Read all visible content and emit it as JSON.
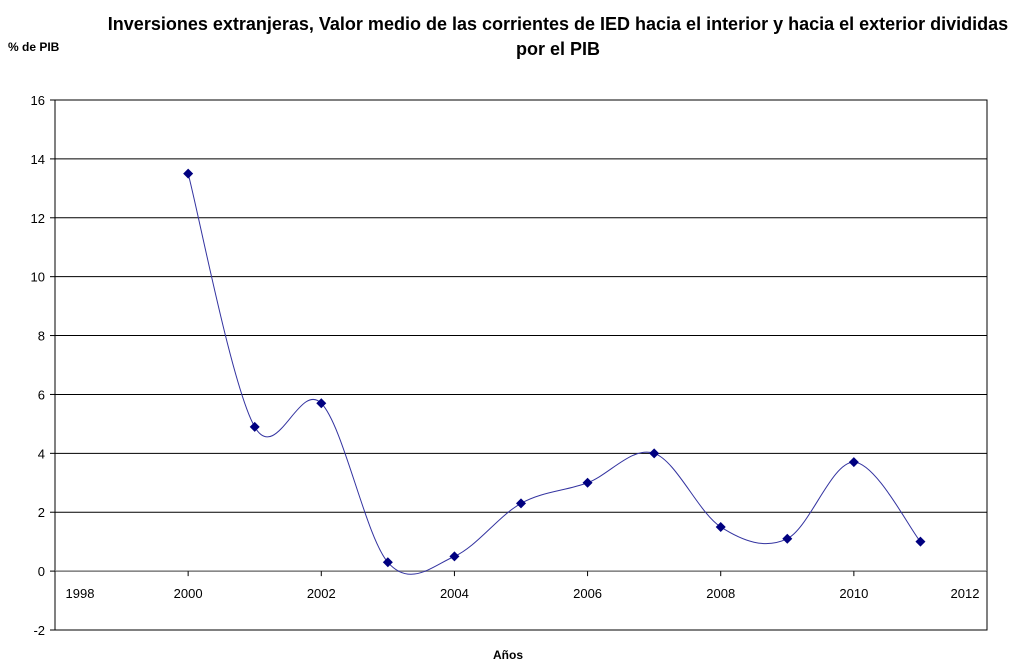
{
  "chart_data": {
    "type": "line",
    "title": "Inversiones extranjeras, Valor medio de las corrientes de IED hacia el interior y hacia el exterior divididas por el PIB",
    "ylabel": "% de PIB",
    "xlabel": "Años",
    "xlim": [
      1998,
      2012
    ],
    "ylim": [
      -2,
      16
    ],
    "xticks": [
      1998,
      2000,
      2002,
      2004,
      2006,
      2008,
      2010,
      2012
    ],
    "yticks": [
      -2,
      0,
      2,
      4,
      6,
      8,
      10,
      12,
      14,
      16
    ],
    "grid": "horizontal",
    "smoothed": true,
    "marker": "diamond",
    "color": "#000080",
    "x": [
      2000,
      2001,
      2002,
      2003,
      2004,
      2005,
      2006,
      2007,
      2008,
      2009,
      2010,
      2011
    ],
    "y": [
      13.5,
      4.9,
      5.7,
      0.3,
      0.5,
      2.3,
      3.0,
      4.0,
      1.5,
      1.1,
      3.7,
      1.0
    ]
  }
}
